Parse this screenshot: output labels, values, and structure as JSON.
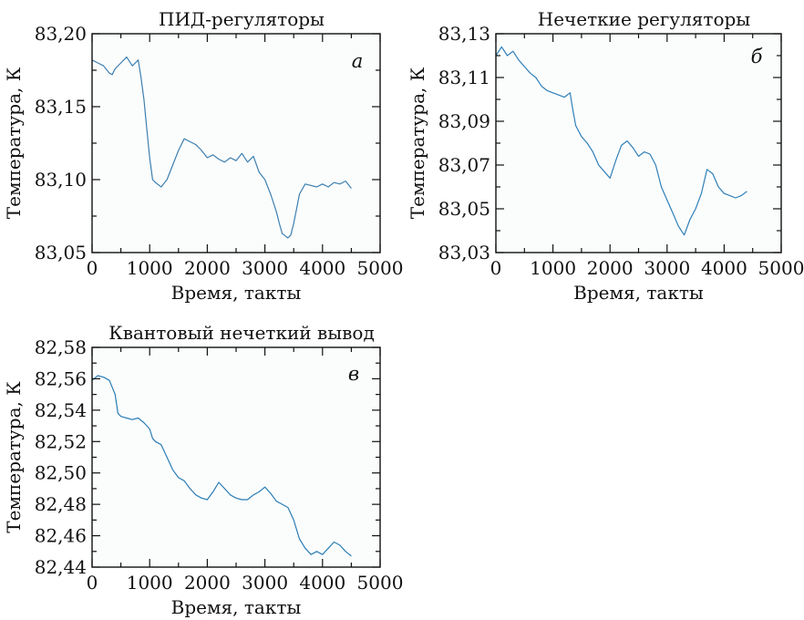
{
  "chart_data": [
    {
      "type": "line",
      "title": "ПИД-регуляторы",
      "letter": "а",
      "xlabel": "Время, такты",
      "ylabel": "Температура, К",
      "xlim": [
        0,
        5000
      ],
      "ylim": [
        83.05,
        83.2
      ],
      "xticks": [
        0,
        1000,
        2000,
        3000,
        4000,
        5000
      ],
      "xtick_labels": [
        "0",
        "1000",
        "2000",
        "3000",
        "4000",
        "5000"
      ],
      "yticks": [
        83.05,
        83.1,
        83.15,
        83.2
      ],
      "ytick_labels": [
        "83,05",
        "83,10",
        "83,15",
        "83,20"
      ],
      "line_color": "#3d7fb0",
      "x": [
        0,
        100,
        200,
        300,
        350,
        400,
        500,
        600,
        700,
        800,
        850,
        900,
        950,
        1000,
        1050,
        1100,
        1200,
        1300,
        1400,
        1500,
        1600,
        1700,
        1800,
        1900,
        2000,
        2100,
        2200,
        2300,
        2400,
        2500,
        2600,
        2700,
        2800,
        2900,
        3000,
        3100,
        3200,
        3250,
        3300,
        3400,
        3450,
        3500,
        3550,
        3600,
        3700,
        3800,
        3900,
        4000,
        4100,
        4200,
        4300,
        4400,
        4500
      ],
      "y": [
        83.182,
        83.18,
        83.178,
        83.173,
        83.172,
        83.176,
        83.18,
        83.184,
        83.178,
        83.182,
        83.17,
        83.155,
        83.135,
        83.115,
        83.1,
        83.098,
        83.095,
        83.1,
        83.11,
        83.12,
        83.128,
        83.126,
        83.124,
        83.12,
        83.115,
        83.117,
        83.114,
        83.112,
        83.115,
        83.113,
        83.118,
        83.112,
        83.116,
        83.105,
        83.1,
        83.09,
        83.078,
        83.07,
        83.063,
        83.06,
        83.062,
        83.07,
        83.08,
        83.09,
        83.097,
        83.096,
        83.095,
        83.097,
        83.095,
        83.098,
        83.097,
        83.099,
        83.094
      ]
    },
    {
      "type": "line",
      "title": "Нечеткие регуляторы",
      "letter": "б",
      "xlabel": "Время, такты",
      "ylabel": "Температура, К",
      "xlim": [
        0,
        5000
      ],
      "ylim": [
        83.03,
        83.13
      ],
      "xticks": [
        0,
        1000,
        2000,
        3000,
        4000,
        5000
      ],
      "xtick_labels": [
        "0",
        "1000",
        "2000",
        "3000",
        "4000",
        "5000"
      ],
      "yticks": [
        83.03,
        83.05,
        83.07,
        83.09,
        83.11,
        83.13
      ],
      "ytick_labels": [
        "83,03",
        "83,05",
        "83,07",
        "83,09",
        "83,11",
        "83,13"
      ],
      "line_color": "#2f7fb8",
      "x": [
        0,
        100,
        200,
        300,
        400,
        500,
        600,
        700,
        800,
        900,
        1000,
        1100,
        1200,
        1300,
        1350,
        1400,
        1500,
        1600,
        1700,
        1800,
        1900,
        2000,
        2100,
        2200,
        2300,
        2400,
        2500,
        2600,
        2700,
        2800,
        2900,
        3000,
        3100,
        3200,
        3300,
        3400,
        3500,
        3600,
        3700,
        3800,
        3900,
        4000,
        4100,
        4200,
        4300,
        4400
      ],
      "y": [
        83.12,
        83.124,
        83.12,
        83.122,
        83.118,
        83.115,
        83.112,
        83.11,
        83.106,
        83.104,
        83.103,
        83.102,
        83.101,
        83.103,
        83.095,
        83.088,
        83.083,
        83.08,
        83.076,
        83.07,
        83.067,
        83.064,
        83.072,
        83.079,
        83.081,
        83.078,
        83.074,
        83.076,
        83.075,
        83.07,
        83.06,
        83.054,
        83.048,
        83.042,
        83.038,
        83.045,
        83.05,
        83.057,
        83.068,
        83.066,
        83.06,
        83.057,
        83.056,
        83.055,
        83.056,
        83.058
      ]
    },
    {
      "type": "line",
      "title": "Квантовый нечеткий вывод",
      "letter": "в",
      "xlabel": "Время, такты",
      "ylabel": "Температура, К",
      "xlim": [
        0,
        5000
      ],
      "ylim": [
        82.44,
        82.58
      ],
      "xticks": [
        0,
        1000,
        2000,
        3000,
        4000,
        5000
      ],
      "xtick_labels": [
        "0",
        "1000",
        "2000",
        "3000",
        "4000",
        "5000"
      ],
      "yticks": [
        82.44,
        82.46,
        82.48,
        82.5,
        82.52,
        82.54,
        82.56,
        82.58
      ],
      "ytick_labels": [
        "82,44",
        "82,46",
        "82,48",
        "82,50",
        "82,52",
        "82,54",
        "82,56",
        "82,58"
      ],
      "line_color": "#2a7db5",
      "x": [
        0,
        100,
        200,
        300,
        400,
        450,
        500,
        600,
        700,
        800,
        900,
        1000,
        1050,
        1100,
        1200,
        1300,
        1400,
        1500,
        1600,
        1700,
        1800,
        1900,
        2000,
        2100,
        2200,
        2300,
        2400,
        2500,
        2600,
        2700,
        2800,
        2900,
        3000,
        3100,
        3200,
        3300,
        3400,
        3500,
        3600,
        3700,
        3800,
        3900,
        4000,
        4100,
        4200,
        4300,
        4400,
        4500
      ],
      "y": [
        82.559,
        82.562,
        82.561,
        82.559,
        82.55,
        82.538,
        82.536,
        82.535,
        82.534,
        82.535,
        82.532,
        82.528,
        82.522,
        82.52,
        82.518,
        82.51,
        82.502,
        82.497,
        82.495,
        82.49,
        82.486,
        82.484,
        82.483,
        82.488,
        82.494,
        82.49,
        82.486,
        82.484,
        82.483,
        82.483,
        82.486,
        82.488,
        82.491,
        82.487,
        82.482,
        82.48,
        82.478,
        82.47,
        82.458,
        82.452,
        82.448,
        82.45,
        82.448,
        82.452,
        82.456,
        82.454,
        82.45,
        82.447
      ]
    }
  ]
}
